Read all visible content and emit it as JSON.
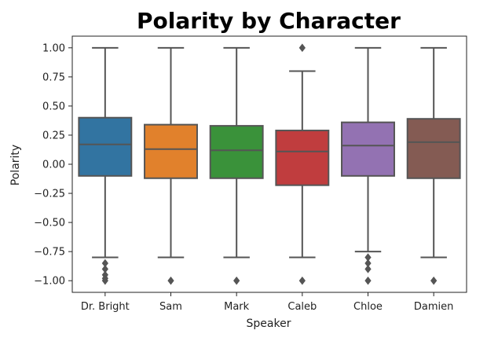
{
  "chart_data": {
    "type": "box",
    "title": "Polarity by Character",
    "xlabel": "Speaker",
    "ylabel": "Polarity",
    "ylim": [
      -1.1,
      1.1
    ],
    "yticks": [
      1.0,
      0.75,
      0.5,
      0.25,
      0.0,
      -0.25,
      -0.5,
      -0.75,
      -1.0
    ],
    "ytick_labels": [
      "1.00",
      "0.75",
      "0.50",
      "0.25",
      "0.00",
      "−0.25",
      "−0.50",
      "−0.75",
      "−1.00"
    ],
    "grid": false,
    "categories": [
      "Dr. Bright",
      "Sam",
      "Mark",
      "Caleb",
      "Chloe",
      "Damien"
    ],
    "boxes": [
      {
        "category": "Dr. Bright",
        "color": "#3274a1",
        "whisker_low": -0.8,
        "q1": -0.1,
        "median": 0.17,
        "q3": 0.4,
        "whisker_high": 1.0,
        "outliers": [
          -0.85,
          -0.9,
          -0.95,
          -0.98,
          -1.0
        ]
      },
      {
        "category": "Sam",
        "color": "#e1812c",
        "whisker_low": -0.8,
        "q1": -0.12,
        "median": 0.13,
        "q3": 0.34,
        "whisker_high": 1.0,
        "outliers": [
          -1.0
        ]
      },
      {
        "category": "Mark",
        "color": "#3a923a",
        "whisker_low": -0.8,
        "q1": -0.12,
        "median": 0.12,
        "q3": 0.33,
        "whisker_high": 1.0,
        "outliers": [
          -1.0
        ]
      },
      {
        "category": "Caleb",
        "color": "#c03d3e",
        "whisker_low": -0.8,
        "q1": -0.18,
        "median": 0.11,
        "q3": 0.29,
        "whisker_high": 0.8,
        "outliers": [
          1.0,
          -1.0
        ]
      },
      {
        "category": "Chloe",
        "color": "#9372b2",
        "whisker_low": -0.75,
        "q1": -0.1,
        "median": 0.16,
        "q3": 0.36,
        "whisker_high": 1.0,
        "outliers": [
          -0.8,
          -0.85,
          -0.9,
          -1.0
        ]
      },
      {
        "category": "Damien",
        "color": "#845b53",
        "whisker_low": -0.8,
        "q1": -0.12,
        "median": 0.19,
        "q3": 0.39,
        "whisker_high": 1.0,
        "outliers": [
          -1.0
        ]
      }
    ]
  }
}
